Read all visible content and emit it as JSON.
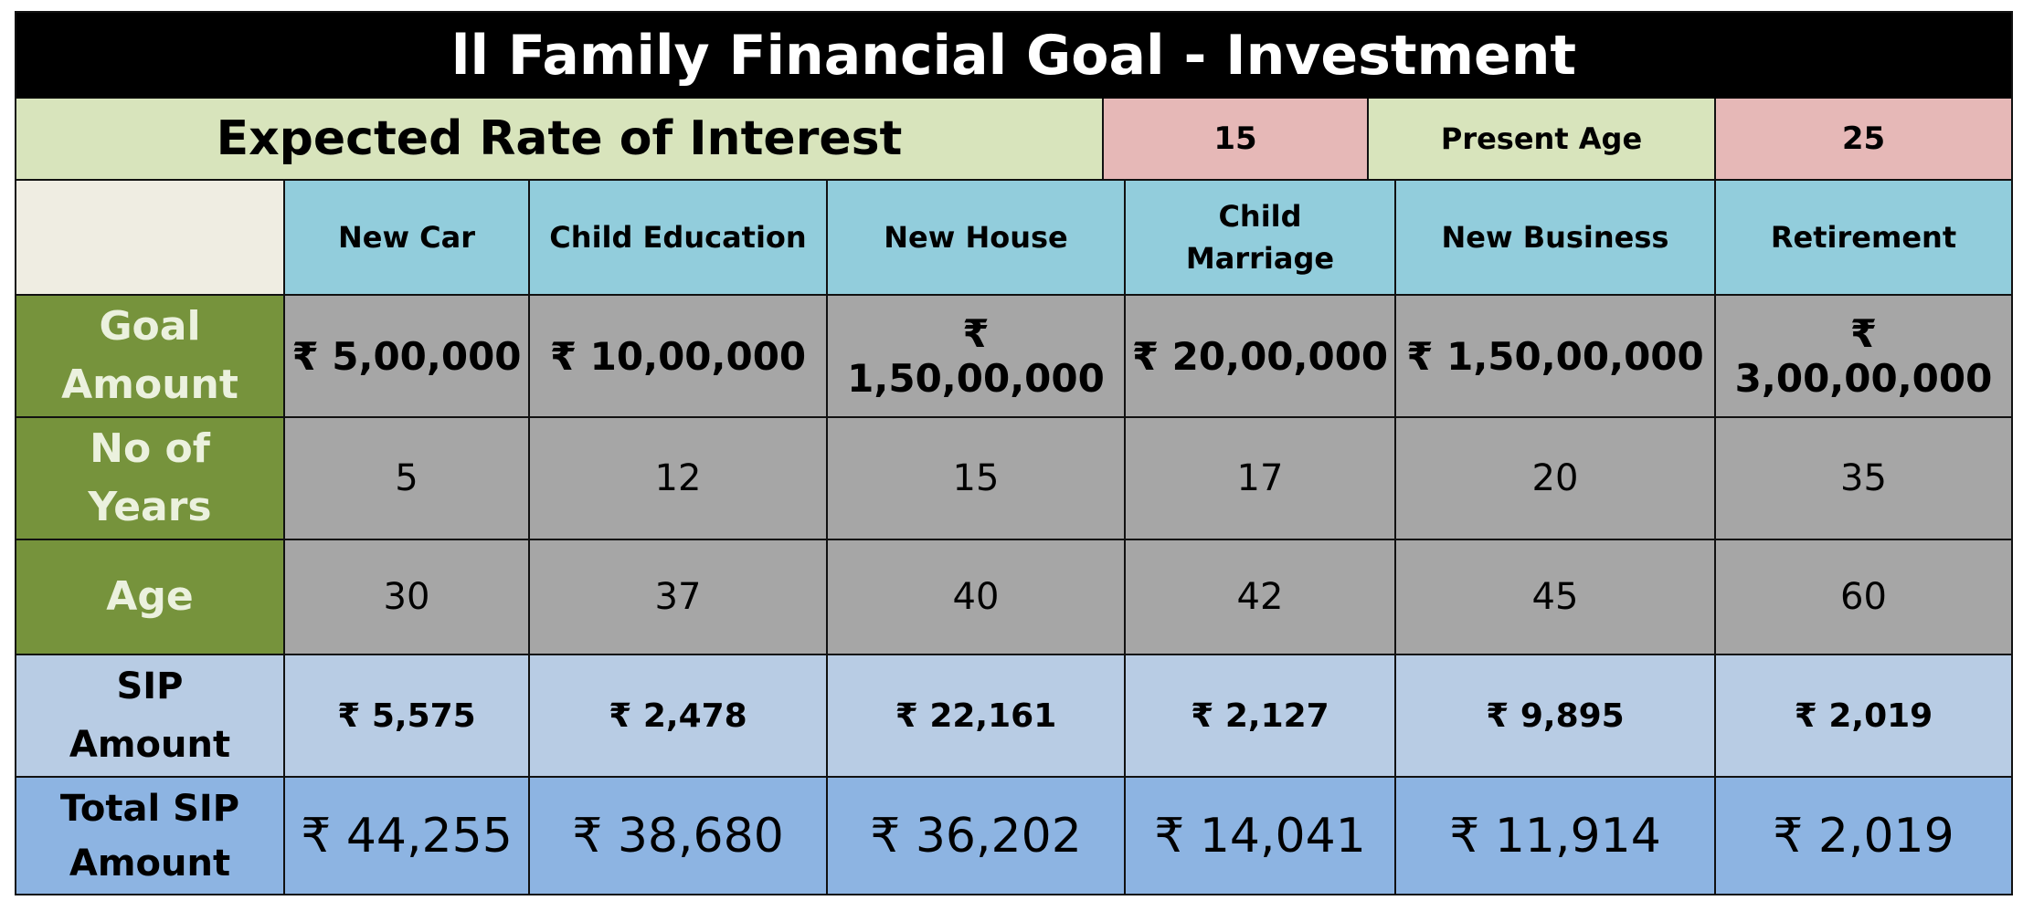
{
  "title": "ll Family Financial Goal  - Investment",
  "expected_rate_label": "Expected Rate of Interest",
  "expected_rate_value": "15",
  "present_age_label": "Present Age",
  "present_age_value": "25",
  "goals": [
    {
      "name": "New Car",
      "goal_amount": "₹ 5,00,000",
      "years": "5",
      "age": "30",
      "sip": "₹ 5,575",
      "total_sip": "₹ 44,255"
    },
    {
      "name": "Child Education",
      "goal_amount": "₹ 10,00,000",
      "years": "12",
      "age": "37",
      "sip": "₹ 2,478",
      "total_sip": "₹ 38,680"
    },
    {
      "name": "New House",
      "goal_amount": "₹ 1,50,00,000",
      "years": "15",
      "age": "40",
      "sip": "₹ 22,161",
      "total_sip": "₹ 36,202"
    },
    {
      "name": "Child\nMarriage",
      "goal_amount": "₹ 20,00,000",
      "years": "17",
      "age": "42",
      "sip": "₹ 2,127",
      "total_sip": "₹ 14,041"
    },
    {
      "name": "New Business",
      "goal_amount": "₹ 1,50,00,000",
      "years": "20",
      "age": "45",
      "sip": "₹ 9,895",
      "total_sip": "₹ 11,914"
    },
    {
      "name": "Retirement",
      "goal_amount": "₹ 3,00,00,000",
      "years": "35",
      "age": "60",
      "sip": "₹ 2,019",
      "total_sip": "₹ 2,019"
    }
  ],
  "row_labels": {
    "goal_amount": "Goal\nAmount",
    "years": "No of\nYears",
    "age": "Age",
    "sip": "SIP\nAmount",
    "total_sip": "Total SIP\nAmount"
  },
  "colors": {
    "title_bg": "#000000",
    "label_green": "#d8e4bc",
    "value_pink": "#e6b8b7",
    "header_blue": "#92cddc",
    "row_label_green": "#76933c",
    "data_grey": "#a6a6a6",
    "sip_blue": "#b8cce4",
    "total_blue": "#8db4e2"
  }
}
